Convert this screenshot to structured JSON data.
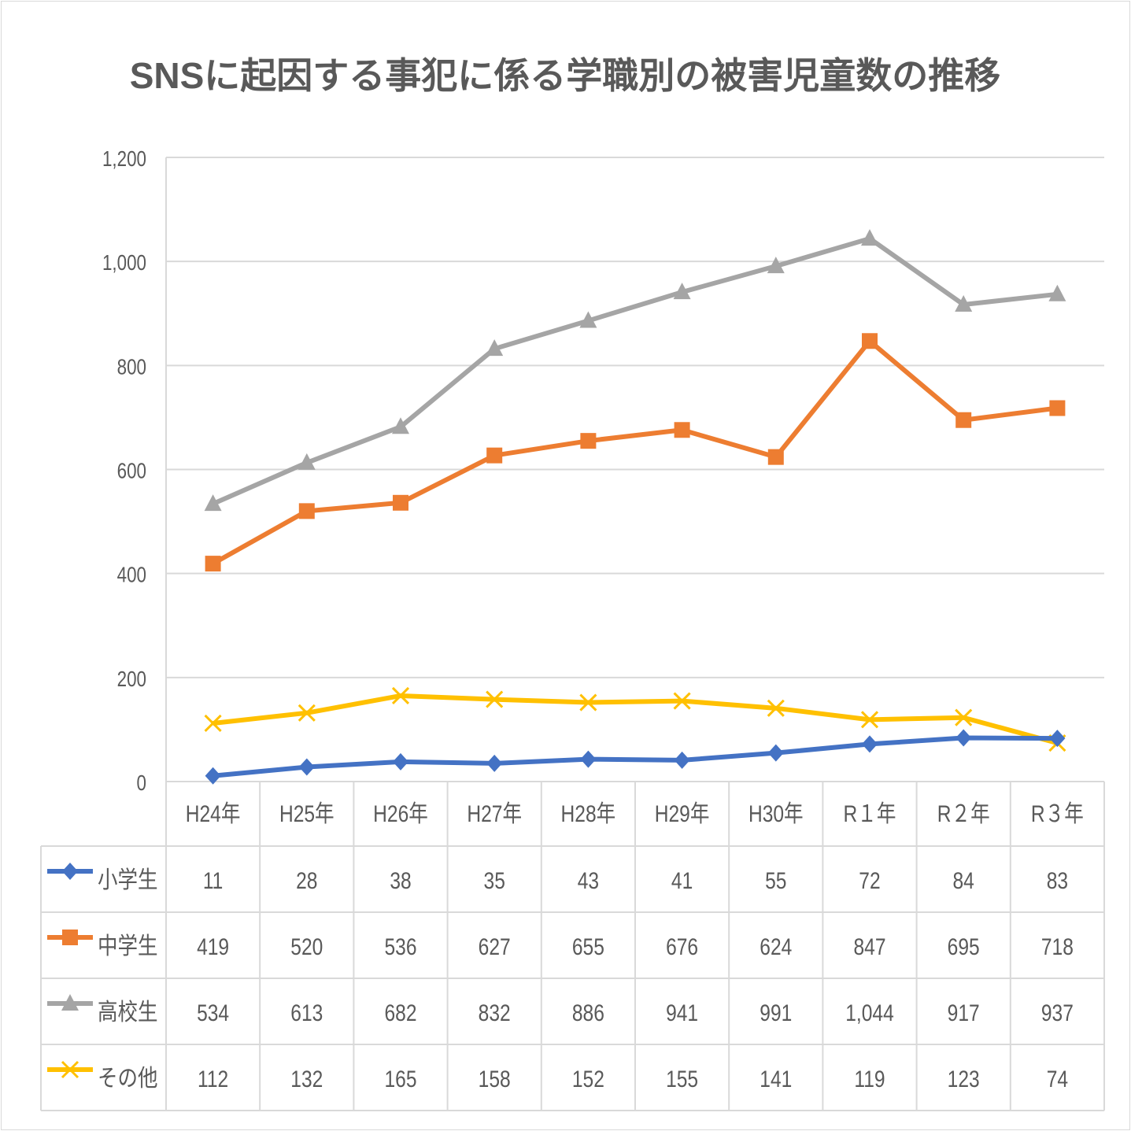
{
  "chart_data": {
    "type": "line",
    "title": "SNSに起因する事犯に係る学職別の被害児童数の推移",
    "categories": [
      "H24年",
      "H25年",
      "H26年",
      "H27年",
      "H28年",
      "H29年",
      "H30年",
      "R１年",
      "R２年",
      "R３年"
    ],
    "ylim": [
      0,
      1200
    ],
    "yticks": [
      0,
      200,
      400,
      600,
      800,
      1000,
      1200
    ],
    "ytick_labels": [
      "0",
      "200",
      "400",
      "600",
      "800",
      "1,000",
      "1,200"
    ],
    "grid": true,
    "legend": "data-table",
    "series": [
      {
        "name": "小学生",
        "marker": "diamond",
        "color": "#4472C4",
        "values": [
          11,
          28,
          38,
          35,
          43,
          41,
          55,
          72,
          84,
          83
        ],
        "labels": [
          "11",
          "28",
          "38",
          "35",
          "43",
          "41",
          "55",
          "72",
          "84",
          "83"
        ]
      },
      {
        "name": "中学生",
        "marker": "square",
        "color": "#ED7D31",
        "values": [
          419,
          520,
          536,
          627,
          655,
          676,
          624,
          847,
          695,
          718
        ],
        "labels": [
          "419",
          "520",
          "536",
          "627",
          "655",
          "676",
          "624",
          "847",
          "695",
          "718"
        ]
      },
      {
        "name": "高校生",
        "marker": "triangle",
        "color": "#A5A5A5",
        "values": [
          534,
          613,
          682,
          832,
          886,
          941,
          991,
          1044,
          917,
          937
        ],
        "labels": [
          "534",
          "613",
          "682",
          "832",
          "886",
          "941",
          "991",
          "1,044",
          "917",
          "937"
        ]
      },
      {
        "name": "その他",
        "marker": "x",
        "color": "#FFC000",
        "values": [
          112,
          132,
          165,
          158,
          152,
          155,
          141,
          119,
          123,
          74
        ],
        "labels": [
          "112",
          "132",
          "165",
          "158",
          "152",
          "155",
          "141",
          "119",
          "123",
          "74"
        ]
      }
    ]
  }
}
